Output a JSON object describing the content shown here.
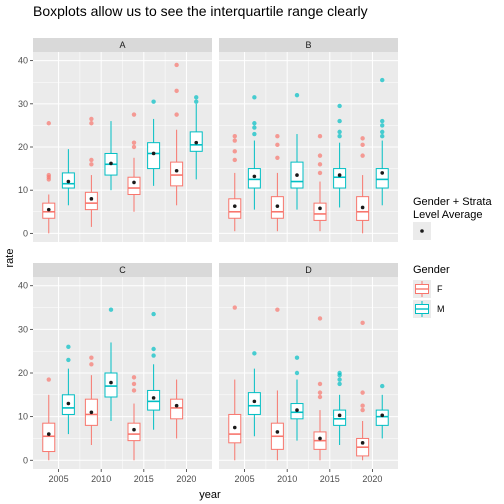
{
  "chart_data": {
    "type": "boxplot",
    "title": "Boxplots allow us to see the interquartile range clearly",
    "xlabel": "year",
    "ylabel": "rate",
    "x_ticks": [
      2005,
      2010,
      2015,
      2020
    ],
    "xlim": [
      2002,
      2023
    ],
    "y_ticks": [
      0,
      10,
      20,
      30,
      40
    ],
    "ylim": [
      -2,
      42
    ],
    "grid": true,
    "colors": {
      "F": "#F8766D",
      "M": "#00BFC4",
      "average": "#1a1a1a"
    },
    "legends": {
      "average": {
        "title": [
          "Gender + Strata",
          "Level Average"
        ]
      },
      "gender": {
        "title": "Gender",
        "entries": [
          "F",
          "M"
        ]
      }
    },
    "panels": [
      {
        "strata": "A",
        "boxes": [
          {
            "year": 2005,
            "gender": "F",
            "lower": 0,
            "q1": 3.5,
            "median": 5,
            "q3": 7,
            "upper": 9,
            "mean": 5.5,
            "outliers": [
              12.5,
              13,
              13.5,
              25.5
            ]
          },
          {
            "year": 2005,
            "gender": "M",
            "lower": 6.5,
            "q1": 10.5,
            "median": 11.5,
            "q3": 14,
            "upper": 19.5,
            "mean": 12
          },
          {
            "year": 2010,
            "gender": "F",
            "lower": 1.5,
            "q1": 5.5,
            "median": 7,
            "q3": 9.5,
            "upper": 13.5,
            "mean": 8,
            "outliers": [
              16,
              17,
              25.5,
              26.5
            ]
          },
          {
            "year": 2010,
            "gender": "M",
            "lower": 10,
            "q1": 13.5,
            "median": 16,
            "q3": 18.5,
            "upper": 26,
            "mean": 16.2
          },
          {
            "year": 2015,
            "gender": "F",
            "lower": 5,
            "q1": 9,
            "median": 10.5,
            "q3": 13,
            "upper": 17.5,
            "mean": 11.8,
            "outliers": [
              20,
              21,
              27.5
            ]
          },
          {
            "year": 2015,
            "gender": "M",
            "lower": 11,
            "q1": 15,
            "median": 18.5,
            "q3": 21,
            "upper": 26.5,
            "mean": 18.5,
            "outliers": [
              30.5
            ]
          },
          {
            "year": 2020,
            "gender": "F",
            "lower": 6.5,
            "q1": 11,
            "median": 13.5,
            "q3": 16.5,
            "upper": 24,
            "mean": 14.5,
            "outliers": [
              27.5,
              33,
              39
            ]
          },
          {
            "year": 2020,
            "gender": "M",
            "lower": 12.5,
            "q1": 19,
            "median": 20.5,
            "q3": 23.5,
            "upper": 30,
            "mean": 21,
            "outliers": [
              30.5,
              31.5
            ]
          }
        ]
      },
      {
        "strata": "B",
        "boxes": [
          {
            "year": 2005,
            "gender": "F",
            "lower": 0.5,
            "q1": 3.5,
            "median": 5,
            "q3": 8,
            "upper": 14,
            "mean": 6.3,
            "outliers": [
              17,
              19,
              21.5,
              22.5
            ]
          },
          {
            "year": 2005,
            "gender": "M",
            "lower": 5.5,
            "q1": 10.5,
            "median": 12.5,
            "q3": 15,
            "upper": 21.5,
            "mean": 13.2,
            "outliers": [
              23,
              24.5,
              25.5,
              31.5
            ]
          },
          {
            "year": 2010,
            "gender": "F",
            "lower": 0.5,
            "q1": 3.5,
            "median": 5,
            "q3": 8.5,
            "upper": 14,
            "mean": 6.3,
            "outliers": [
              17.5,
              20.5,
              22.5
            ]
          },
          {
            "year": 2010,
            "gender": "M",
            "lower": 5.5,
            "q1": 10.5,
            "median": 12,
            "q3": 16.5,
            "upper": 23,
            "mean": 13.5,
            "outliers": [
              32
            ]
          },
          {
            "year": 2015,
            "gender": "F",
            "lower": 0.5,
            "q1": 3,
            "median": 4.5,
            "q3": 7,
            "upper": 12,
            "mean": 5.8,
            "outliers": [
              14,
              16,
              18,
              22.5
            ]
          },
          {
            "year": 2015,
            "gender": "M",
            "lower": 6,
            "q1": 10.5,
            "median": 13,
            "q3": 15,
            "upper": 21,
            "mean": 13.5,
            "outliers": [
              22.5,
              23.5,
              26,
              29.5
            ]
          },
          {
            "year": 2020,
            "gender": "F",
            "lower": 0,
            "q1": 3,
            "median": 5,
            "q3": 8.5,
            "upper": 13.5,
            "mean": 6,
            "outliers": [
              18,
              20.5,
              22
            ]
          },
          {
            "year": 2020,
            "gender": "M",
            "lower": 6.5,
            "q1": 10.5,
            "median": 12.5,
            "q3": 15,
            "upper": 21.5,
            "mean": 14,
            "outliers": [
              22.5,
              23.5,
              25,
              26,
              35.5
            ]
          }
        ]
      },
      {
        "strata": "C",
        "boxes": [
          {
            "year": 2005,
            "gender": "F",
            "lower": 0,
            "q1": 2,
            "median": 5.5,
            "q3": 8.5,
            "upper": 15,
            "mean": 6,
            "outliers": [
              18.5
            ]
          },
          {
            "year": 2005,
            "gender": "M",
            "lower": 6,
            "q1": 10.5,
            "median": 12,
            "q3": 15,
            "upper": 21,
            "mean": 13,
            "outliers": [
              23,
              26
            ]
          },
          {
            "year": 2010,
            "gender": "F",
            "lower": 3.5,
            "q1": 8,
            "median": 10.5,
            "q3": 14,
            "upper": 19.5,
            "mean": 11,
            "outliers": [
              22,
              23.5
            ]
          },
          {
            "year": 2010,
            "gender": "M",
            "lower": 9,
            "q1": 14.5,
            "median": 17,
            "q3": 20,
            "upper": 27,
            "mean": 17.8,
            "outliers": [
              34.5
            ]
          },
          {
            "year": 2015,
            "gender": "F",
            "lower": 0,
            "q1": 4.5,
            "median": 6,
            "q3": 8.5,
            "upper": 13,
            "mean": 7,
            "outliers": [
              16,
              17.5,
              19
            ]
          },
          {
            "year": 2015,
            "gender": "M",
            "lower": 7,
            "q1": 11.5,
            "median": 13.5,
            "q3": 16,
            "upper": 22,
            "mean": 14.3,
            "outliers": [
              24,
              25.5,
              33.5
            ]
          },
          {
            "year": 2020,
            "gender": "F",
            "lower": 5,
            "q1": 9.5,
            "median": 12,
            "q3": 14,
            "upper": 18.5,
            "mean": 12.5
          }
        ]
      },
      {
        "strata": "D",
        "boxes": [
          {
            "year": 2005,
            "gender": "F",
            "lower": 0,
            "q1": 4,
            "median": 6,
            "q3": 10.5,
            "upper": 18.5,
            "mean": 7.5,
            "outliers": [
              35
            ]
          },
          {
            "year": 2005,
            "gender": "M",
            "lower": 5.5,
            "q1": 10.5,
            "median": 12.5,
            "q3": 15.5,
            "upper": 21,
            "mean": 13.5,
            "outliers": [
              24.5
            ]
          },
          {
            "year": 2010,
            "gender": "F",
            "lower": 0,
            "q1": 2.5,
            "median": 5.5,
            "q3": 8.5,
            "upper": 16,
            "mean": 6.5,
            "outliers": [
              34.5
            ]
          },
          {
            "year": 2010,
            "gender": "M",
            "lower": 4.5,
            "q1": 9.5,
            "median": 11,
            "q3": 13,
            "upper": 18.5,
            "mean": 11.5,
            "outliers": [
              20,
              23.5
            ]
          },
          {
            "year": 2015,
            "gender": "F",
            "lower": 0,
            "q1": 2.5,
            "median": 4.5,
            "q3": 6.5,
            "upper": 11.5,
            "mean": 5,
            "outliers": [
              14.5,
              15.5,
              17.5,
              32.5
            ]
          },
          {
            "year": 2015,
            "gender": "M",
            "lower": 3.5,
            "q1": 8,
            "median": 9.5,
            "q3": 11.5,
            "upper": 15,
            "mean": 10.3,
            "outliers": [
              17.5,
              18.5,
              19.5,
              20
            ]
          },
          {
            "year": 2020,
            "gender": "F",
            "lower": 0,
            "q1": 1,
            "median": 3,
            "q3": 5,
            "upper": 9,
            "mean": 4,
            "outliers": [
              11.5,
              12.5,
              15.5,
              31.5
            ]
          },
          {
            "year": 2020,
            "gender": "M",
            "lower": 5,
            "q1": 8,
            "median": 10,
            "q3": 11.5,
            "upper": 15,
            "mean": 10.3,
            "outliers": [
              17
            ]
          }
        ]
      }
    ]
  }
}
